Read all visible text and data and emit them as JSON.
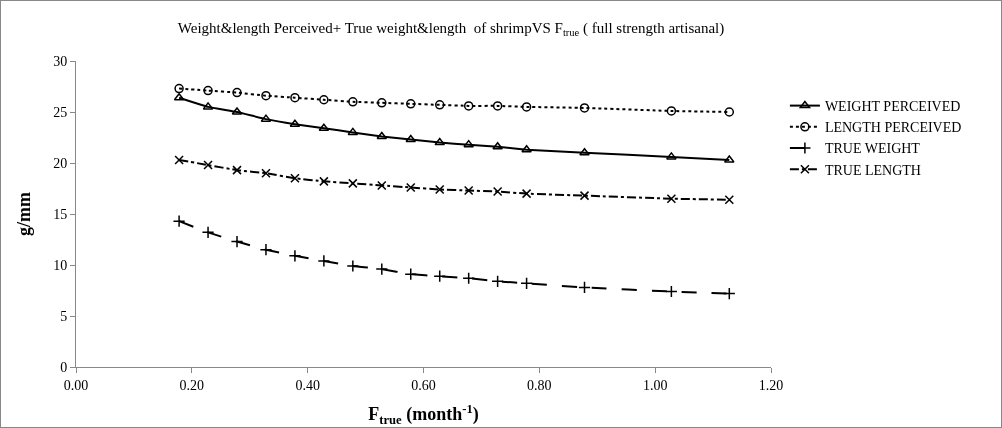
{
  "chart_data": {
    "type": "line",
    "title": "Weight&length Perceived+ True weight&length  of shrimpVS F$_{true}$ ( full strength artisanal)",
    "xlabel": "F$_{true}$ (month$^{-1}$)",
    "ylabel": "g/mm",
    "x": [
      0.178,
      0.228,
      0.278,
      0.328,
      0.378,
      0.428,
      0.478,
      0.528,
      0.578,
      0.628,
      0.678,
      0.728,
      0.778,
      0.878,
      1.028,
      1.128
    ],
    "series": [
      {
        "name": "WEIGHT PERCEIVED",
        "color": "#000000",
        "marker": "triangle",
        "line_style": "solid",
        "values": [
          26.4,
          25.5,
          25.0,
          24.3,
          23.8,
          23.4,
          23.0,
          22.6,
          22.3,
          22.0,
          21.8,
          21.6,
          21.3,
          21.0,
          20.6,
          20.3
        ]
      },
      {
        "name": "LENGTH PERCEIVED",
        "color": "#000000",
        "marker": "circle",
        "line_style": "dotted",
        "values": [
          27.3,
          27.1,
          26.9,
          26.6,
          26.4,
          26.2,
          26.0,
          25.9,
          25.8,
          25.7,
          25.6,
          25.6,
          25.5,
          25.4,
          25.1,
          25.0
        ]
      },
      {
        "name": "TRUE WEIGHT",
        "color": "#000000",
        "marker": "cross",
        "line_style": "dashed",
        "values": [
          14.3,
          13.2,
          12.3,
          11.5,
          10.9,
          10.4,
          9.9,
          9.6,
          9.1,
          8.9,
          8.7,
          8.4,
          8.2,
          7.8,
          7.4,
          7.2
        ]
      },
      {
        "name": "TRUE LENGTH",
        "color": "#000000",
        "marker": "x",
        "line_style": "dashdot",
        "values": [
          20.3,
          19.8,
          19.3,
          19.0,
          18.5,
          18.2,
          18.0,
          17.8,
          17.6,
          17.4,
          17.3,
          17.2,
          17.0,
          16.8,
          16.5,
          16.4
        ]
      }
    ],
    "xlim": [
      0,
      1.2
    ],
    "xticks": [
      {
        "value": 0,
        "label": "0.00"
      },
      {
        "value": 0.2,
        "label": "0.20"
      },
      {
        "value": 0.4,
        "label": "0.40"
      },
      {
        "value": 0.6,
        "label": "0.60"
      },
      {
        "value": 0.8,
        "label": "0.80"
      },
      {
        "value": 1.0,
        "label": "1.00"
      },
      {
        "value": 1.2,
        "label": "1.20"
      }
    ],
    "ylim": [
      0,
      30
    ],
    "yticks": [
      0,
      5,
      10,
      15,
      20,
      25,
      30
    ],
    "grid": false,
    "legend": "right"
  }
}
